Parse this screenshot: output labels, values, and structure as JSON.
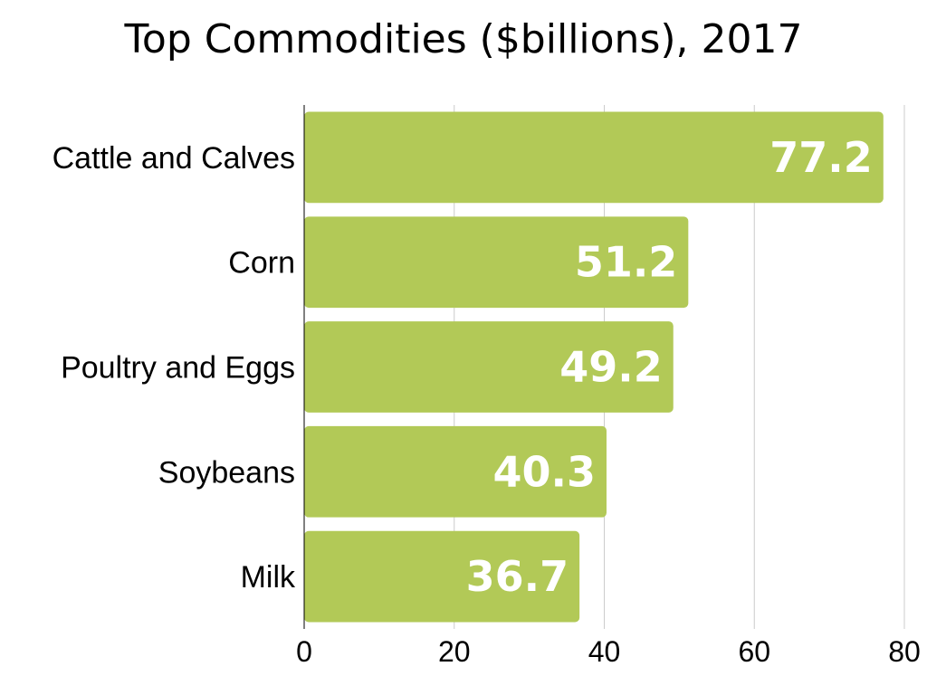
{
  "chart_data": {
    "type": "bar",
    "orientation": "horizontal",
    "title": "Top Commodities ($billions), 2017",
    "categories": [
      "Cattle and Calves",
      "Corn",
      "Poultry and Eggs",
      "Soybeans",
      "Milk"
    ],
    "values": [
      77.2,
      51.2,
      49.2,
      40.3,
      36.7
    ],
    "data_labels": [
      "77.2",
      "51.2",
      "49.2",
      "40.3",
      "36.7"
    ],
    "xlabel": "",
    "ylabel": "",
    "xlim": [
      0,
      80
    ],
    "x_ticks": [
      0,
      20,
      40,
      60,
      80
    ],
    "x_tick_labels": [
      "0",
      "20",
      "40",
      "60",
      "80"
    ],
    "grid": true,
    "legend": "none",
    "colors": {
      "bar": "#b2c957",
      "grid": "#cccccc",
      "axis": "#000000",
      "label": "#ffffff"
    }
  }
}
